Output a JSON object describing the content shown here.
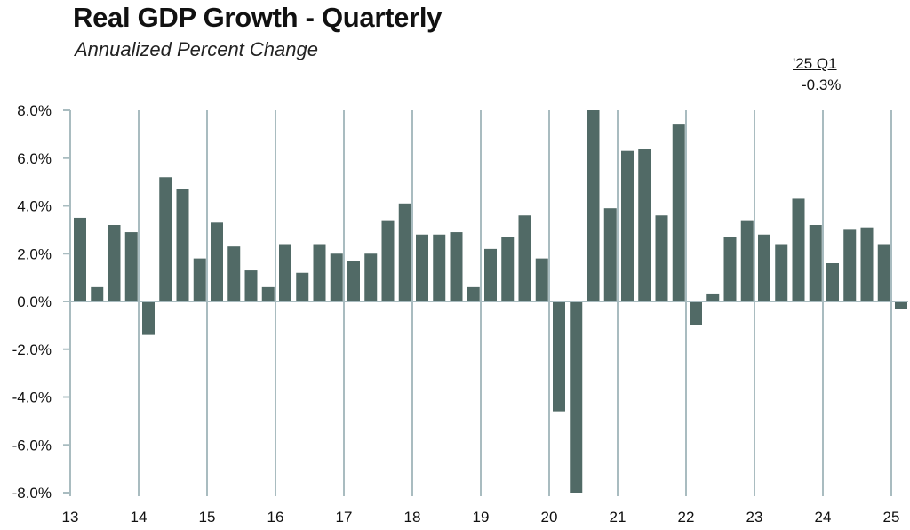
{
  "chart_data": {
    "type": "bar",
    "title": "Real GDP Growth - Quarterly",
    "subtitle": "Annualized Percent Change",
    "annotation": {
      "label": "'25 Q1",
      "value": "-0.3%"
    },
    "ylim": [
      -8,
      8
    ],
    "y_ticks": [
      "8.0%",
      "6.0%",
      "4.0%",
      "2.0%",
      "0.0%",
      "-2.0%",
      "-4.0%",
      "-6.0%",
      "-8.0%"
    ],
    "y_tick_values": [
      8,
      6,
      4,
      2,
      0,
      -2,
      -4,
      -6,
      -8
    ],
    "x_ticks": [
      "13",
      "14",
      "15",
      "16",
      "17",
      "18",
      "19",
      "20",
      "21",
      "22",
      "23",
      "24",
      "25"
    ],
    "grid": "vertical at year boundaries",
    "bar_color": "#516a66",
    "grid_color": "#a9bcc0",
    "categories": [
      "2013 Q1",
      "2013 Q2",
      "2013 Q3",
      "2013 Q4",
      "2014 Q1",
      "2014 Q2",
      "2014 Q3",
      "2014 Q4",
      "2015 Q1",
      "2015 Q2",
      "2015 Q3",
      "2015 Q4",
      "2016 Q1",
      "2016 Q2",
      "2016 Q3",
      "2016 Q4",
      "2017 Q1",
      "2017 Q2",
      "2017 Q3",
      "2017 Q4",
      "2018 Q1",
      "2018 Q2",
      "2018 Q3",
      "2018 Q4",
      "2019 Q1",
      "2019 Q2",
      "2019 Q3",
      "2019 Q4",
      "2020 Q1",
      "2020 Q2",
      "2020 Q3",
      "2020 Q4",
      "2021 Q1",
      "2021 Q2",
      "2021 Q3",
      "2021 Q4",
      "2022 Q1",
      "2022 Q2",
      "2022 Q3",
      "2022 Q4",
      "2023 Q1",
      "2023 Q2",
      "2023 Q3",
      "2023 Q4",
      "2024 Q1",
      "2024 Q2",
      "2024 Q3",
      "2024 Q4",
      "2025 Q1"
    ],
    "values": [
      3.5,
      0.6,
      3.2,
      2.9,
      -1.4,
      5.2,
      4.7,
      1.8,
      3.3,
      2.3,
      1.3,
      0.6,
      2.4,
      1.2,
      2.4,
      2.0,
      1.7,
      2.0,
      3.4,
      4.1,
      2.8,
      2.8,
      2.9,
      0.6,
      2.2,
      2.7,
      3.6,
      1.8,
      -4.6,
      -8.0,
      8.0,
      3.9,
      6.3,
      6.4,
      3.6,
      7.4,
      -1.0,
      0.3,
      2.7,
      3.4,
      2.8,
      2.4,
      4.3,
      3.2,
      1.6,
      3.0,
      3.1,
      2.4,
      -0.3
    ]
  }
}
